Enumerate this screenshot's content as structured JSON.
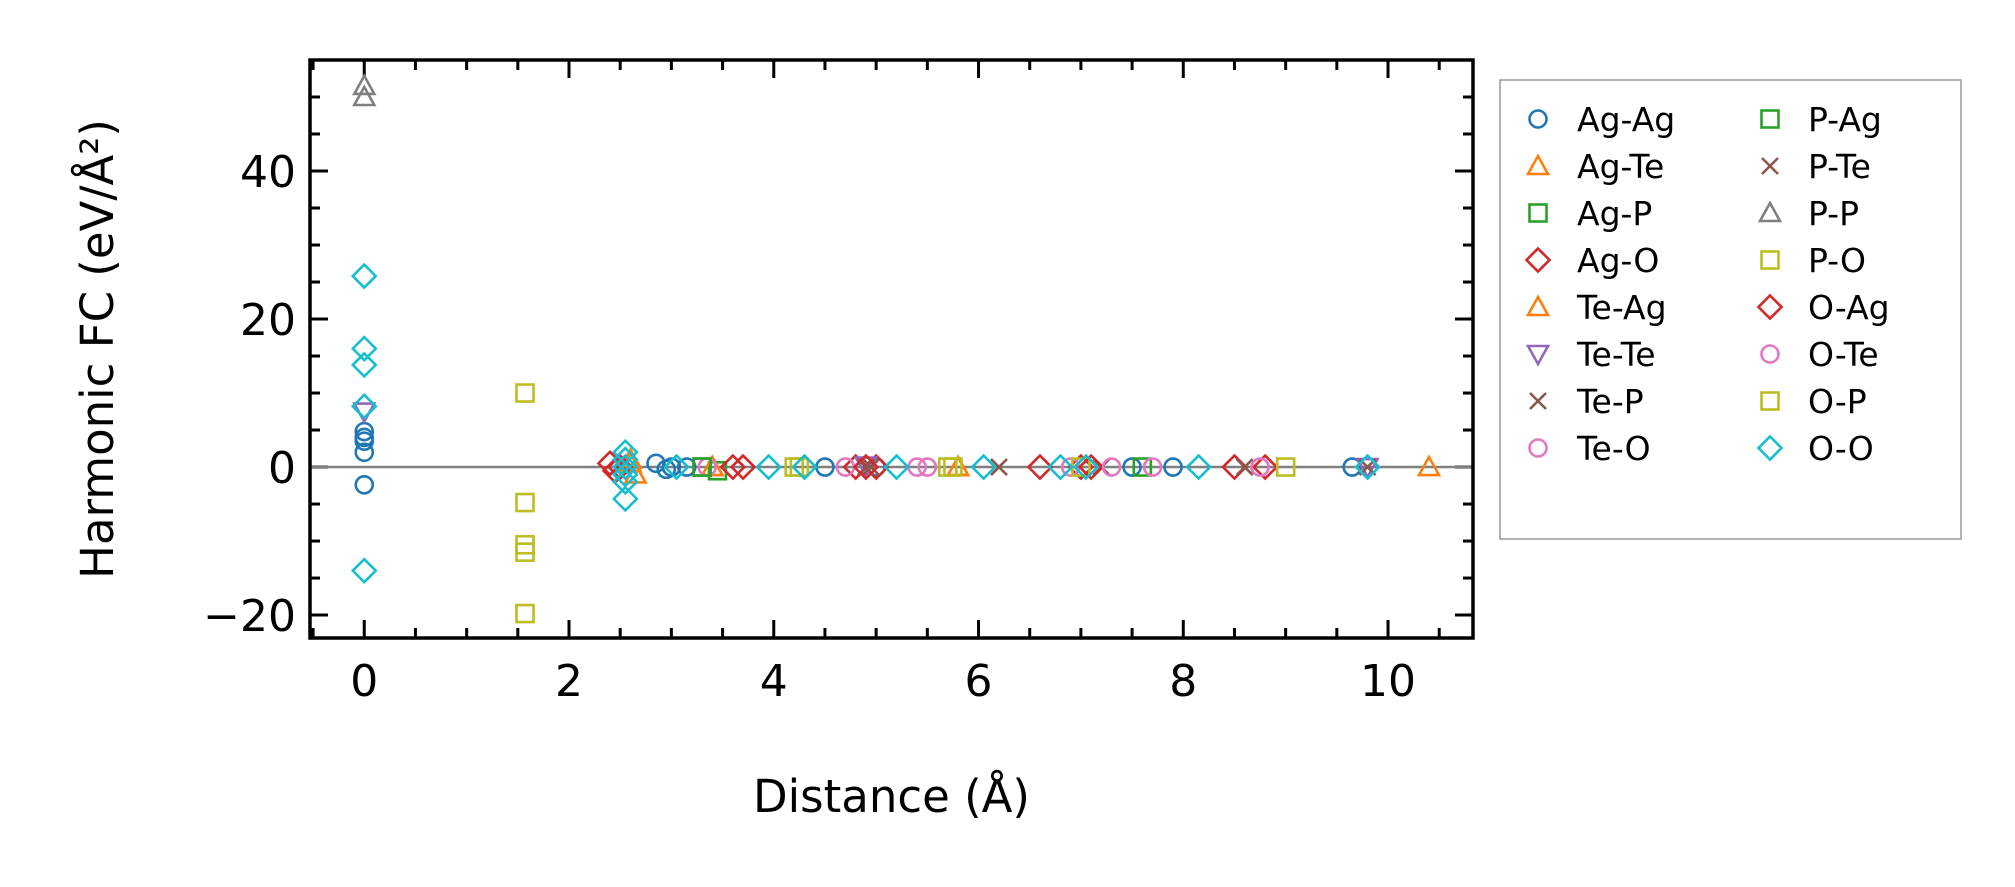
{
  "chart_data": {
    "type": "scatter",
    "title": "",
    "xlabel": "Distance (Å)",
    "ylabel": "Harmonic FC (eV/Å²)",
    "xlim": [
      -0.53,
      10.83
    ],
    "ylim": [
      -23.1,
      55
    ],
    "xticks": [
      0,
      2,
      4,
      6,
      8,
      10
    ],
    "xtick_labels": [
      "0",
      "2",
      "4",
      "6",
      "8",
      "10"
    ],
    "yticks": [
      -20,
      0,
      20,
      40
    ],
    "ytick_labels": [
      "−20",
      "0",
      "20",
      "40"
    ],
    "x_minor_step": 0.5,
    "y_minor_step": 5,
    "grid": false,
    "zero_line": true,
    "legend_position": "outside-right",
    "series": [
      {
        "name": "Ag-Ag",
        "marker": "circle",
        "color": "#1f77b4",
        "points": [
          [
            0,
            4.8
          ],
          [
            0,
            4
          ],
          [
            0,
            3.5
          ],
          [
            0,
            2
          ],
          [
            0,
            -2.4
          ],
          [
            2.85,
            0.5
          ],
          [
            2.95,
            -0.3
          ],
          [
            3.0,
            0
          ],
          [
            3.15,
            0
          ],
          [
            4.5,
            0
          ],
          [
            5.0,
            0
          ],
          [
            7.5,
            0
          ],
          [
            7.9,
            0
          ],
          [
            9.65,
            0
          ]
        ]
      },
      {
        "name": "Ag-Te",
        "marker": "triangle-up",
        "color": "#ff7f0e",
        "points": [
          [
            2.6,
            1
          ],
          [
            2.65,
            -1
          ],
          [
            3.4,
            0
          ],
          [
            5.8,
            0
          ],
          [
            10.4,
            0
          ]
        ]
      },
      {
        "name": "Ag-P",
        "marker": "square",
        "color": "#2ca02c",
        "points": [
          [
            3.3,
            0
          ],
          [
            3.45,
            -0.5
          ],
          [
            7.6,
            0
          ]
        ]
      },
      {
        "name": "Ag-O",
        "marker": "diamond",
        "color": "#d62728",
        "points": [
          [
            2.4,
            0.5
          ],
          [
            2.45,
            -0.5
          ],
          [
            3.6,
            0
          ],
          [
            3.7,
            0
          ],
          [
            4.8,
            0
          ],
          [
            5.0,
            0
          ],
          [
            6.6,
            0
          ],
          [
            7.0,
            0
          ],
          [
            8.5,
            0
          ],
          [
            8.8,
            0
          ]
        ]
      },
      {
        "name": "Te-Ag",
        "marker": "triangle-up",
        "color": "#ff7f0e",
        "points": [
          [
            2.6,
            0.5
          ],
          [
            3.4,
            0
          ],
          [
            5.8,
            0
          ]
        ]
      },
      {
        "name": "Te-Te",
        "marker": "triangle-down",
        "color": "#9467bd",
        "points": [
          [
            0,
            7.5
          ],
          [
            4.9,
            0.2
          ],
          [
            9.8,
            0
          ]
        ]
      },
      {
        "name": "Te-P",
        "marker": "x",
        "color": "#8c564b",
        "points": [
          [
            4.9,
            0
          ],
          [
            6.2,
            0
          ],
          [
            8.6,
            0
          ],
          [
            9.8,
            0
          ]
        ]
      },
      {
        "name": "Te-O",
        "marker": "circle",
        "color": "#e377c2",
        "points": [
          [
            3.35,
            0
          ],
          [
            4.7,
            0
          ],
          [
            5.4,
            0
          ],
          [
            6.9,
            0
          ],
          [
            7.7,
            0
          ],
          [
            8.75,
            0
          ]
        ]
      },
      {
        "name": "P-Ag",
        "marker": "square",
        "color": "#2ca02c",
        "points": [
          [
            3.3,
            0
          ]
        ]
      },
      {
        "name": "P-Te",
        "marker": "x",
        "color": "#8c564b",
        "points": [
          [
            4.95,
            0
          ],
          [
            7.2,
            0
          ]
        ]
      },
      {
        "name": "P-P",
        "marker": "triangle-up",
        "color": "#7f7f7f",
        "points": [
          [
            0,
            51.5
          ],
          [
            0,
            50
          ]
        ]
      },
      {
        "name": "P-O",
        "marker": "square",
        "color": "#bcbd22",
        "points": [
          [
            1.57,
            10
          ],
          [
            1.57,
            -4.8
          ],
          [
            1.57,
            -10.5
          ],
          [
            1.57,
            -11.5
          ],
          [
            1.57,
            -19.8
          ],
          [
            4.2,
            0
          ],
          [
            5.7,
            0
          ],
          [
            7.0,
            0
          ],
          [
            9.0,
            0
          ]
        ]
      },
      {
        "name": "O-Ag",
        "marker": "diamond",
        "color": "#d62728",
        "points": [
          [
            2.5,
            0
          ],
          [
            4.9,
            0
          ],
          [
            7.1,
            0
          ]
        ]
      },
      {
        "name": "O-Te",
        "marker": "circle",
        "color": "#e377c2",
        "points": [
          [
            5.5,
            0
          ],
          [
            7.3,
            0
          ]
        ]
      },
      {
        "name": "O-P",
        "marker": "square",
        "color": "#bcbd22",
        "points": [
          [
            4.25,
            0
          ],
          [
            5.75,
            0
          ]
        ]
      },
      {
        "name": "O-O",
        "marker": "diamond",
        "color": "#17becf",
        "points": [
          [
            0,
            25.8
          ],
          [
            0,
            16
          ],
          [
            0,
            13.8
          ],
          [
            0,
            8.2
          ],
          [
            0,
            -14
          ],
          [
            2.55,
            2
          ],
          [
            2.55,
            1
          ],
          [
            2.55,
            0
          ],
          [
            2.55,
            -1
          ],
          [
            2.55,
            -2
          ],
          [
            2.55,
            -4.3
          ],
          [
            3.05,
            0
          ],
          [
            3.95,
            0
          ],
          [
            4.3,
            0
          ],
          [
            5.2,
            0
          ],
          [
            6.05,
            0
          ],
          [
            6.8,
            0
          ],
          [
            7.05,
            0
          ],
          [
            8.15,
            0
          ],
          [
            9.8,
            0
          ]
        ]
      }
    ]
  }
}
